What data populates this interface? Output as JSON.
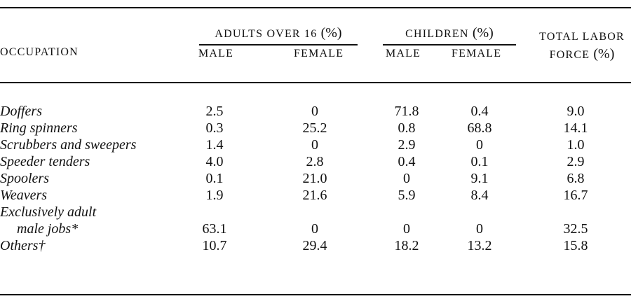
{
  "header": {
    "group_adults": "ADULTS OVER 16",
    "group_children": "CHILDREN",
    "pct": "(%)",
    "total_line1": "TOTAL LABOR",
    "total_line2": "FORCE",
    "occupation": "OCCUPATION",
    "male": "MALE",
    "female": "FEMALE"
  },
  "rows": [
    {
      "label": "Doffers",
      "values": [
        "2.5",
        "0",
        "71.8",
        "0.4",
        "9.0"
      ]
    },
    {
      "label": "Ring spinners",
      "values": [
        "0.3",
        "25.2",
        "0.8",
        "68.8",
        "14.1"
      ]
    },
    {
      "label": "Scrubbers and sweepers",
      "values": [
        "1.4",
        "0",
        "2.9",
        "0",
        "1.0"
      ]
    },
    {
      "label": "Speeder tenders",
      "values": [
        "4.0",
        "2.8",
        "0.4",
        "0.1",
        "2.9"
      ]
    },
    {
      "label": "Spoolers",
      "values": [
        "0.1",
        "21.0",
        "0",
        "9.1",
        "6.8"
      ]
    },
    {
      "label": "Weavers",
      "values": [
        "1.9",
        "21.6",
        "5.9",
        "8.4",
        "16.7"
      ]
    },
    {
      "label": "Exclusively adult",
      "values": [
        "",
        "",
        "",
        "",
        ""
      ]
    },
    {
      "label": "male jobs*",
      "values": [
        "63.1",
        "0",
        "0",
        "0",
        "32.5"
      ]
    },
    {
      "label": "Others†",
      "values": [
        "10.7",
        "29.4",
        "18.2",
        "13.2",
        "15.8"
      ]
    }
  ]
}
